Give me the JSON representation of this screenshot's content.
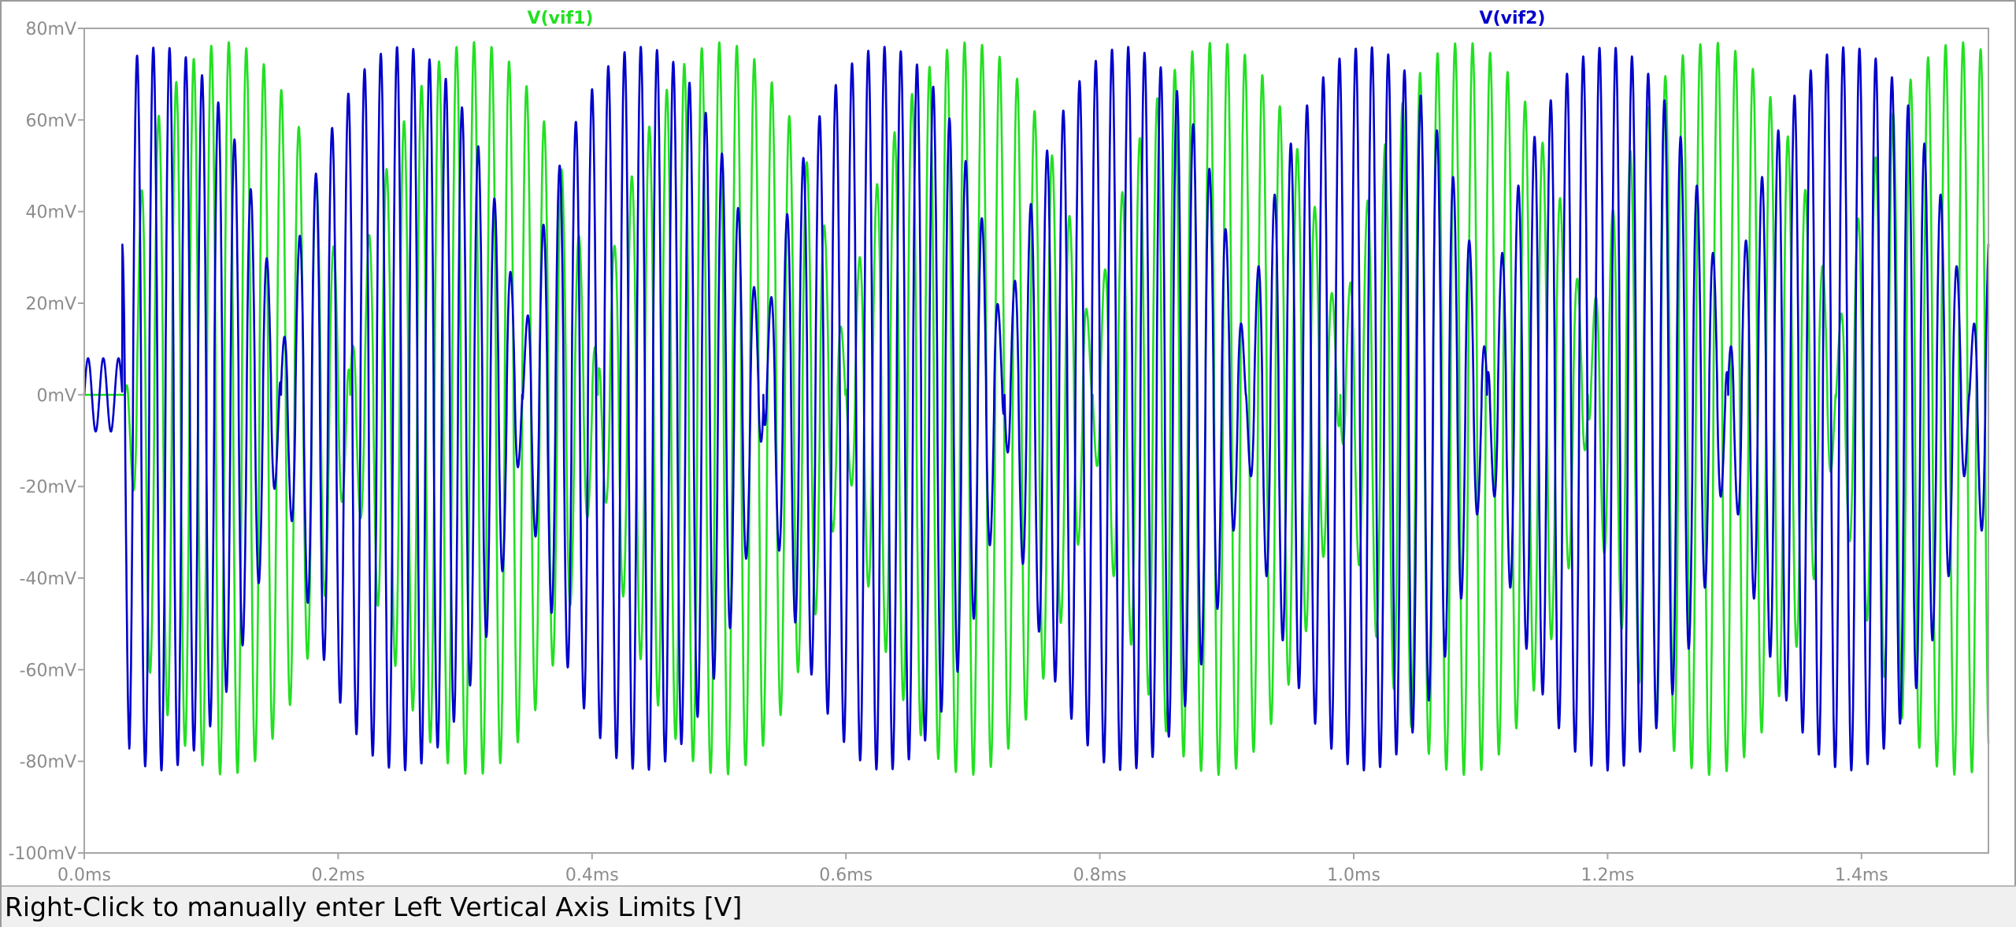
{
  "chart_data": {
    "type": "line",
    "title": "",
    "xlabel": "",
    "ylabel": "",
    "xlim": [
      0.0,
      1.5
    ],
    "ylim": [
      -100,
      80
    ],
    "x_unit": "ms",
    "y_unit": "mV",
    "grid": false,
    "x_ticks": [
      0.0,
      0.2,
      0.4,
      0.6,
      0.8,
      1.0,
      1.2,
      1.4
    ],
    "x_tick_labels": [
      "0.0ms",
      "0.2ms",
      "0.4ms",
      "0.6ms",
      "0.8ms",
      "1.0ms",
      "1.2ms",
      "1.4ms"
    ],
    "y_ticks": [
      80,
      60,
      40,
      20,
      0,
      -20,
      -40,
      -60,
      -80,
      -100
    ],
    "y_tick_labels": [
      "80mV",
      "60mV",
      "40mV",
      "20mV",
      "0mV",
      "-20mV",
      "-40mV",
      "-60mV",
      "-80mV",
      "-100mV"
    ],
    "series": [
      {
        "name": "V(vif1)",
        "color": "#22e022",
        "carrier_period_ms": 0.0138,
        "envelope_period_ms": 0.195,
        "envelope_peak_time_ms": 0.112,
        "peak_positive_mV": 77,
        "peak_negative_mV": -83
      },
      {
        "name": "V(vif2)",
        "color": "#0000cc",
        "carrier_period_ms": 0.0128,
        "envelope_period_ms": 0.19,
        "envelope_peak_time_ms": 0.06,
        "peak_positive_mV": 76,
        "peak_negative_mV": -82,
        "startup_ripple_mV": 8
      }
    ]
  },
  "status_bar": {
    "text": "Right-Click to manually enter Left Vertical Axis Limits [V]"
  }
}
